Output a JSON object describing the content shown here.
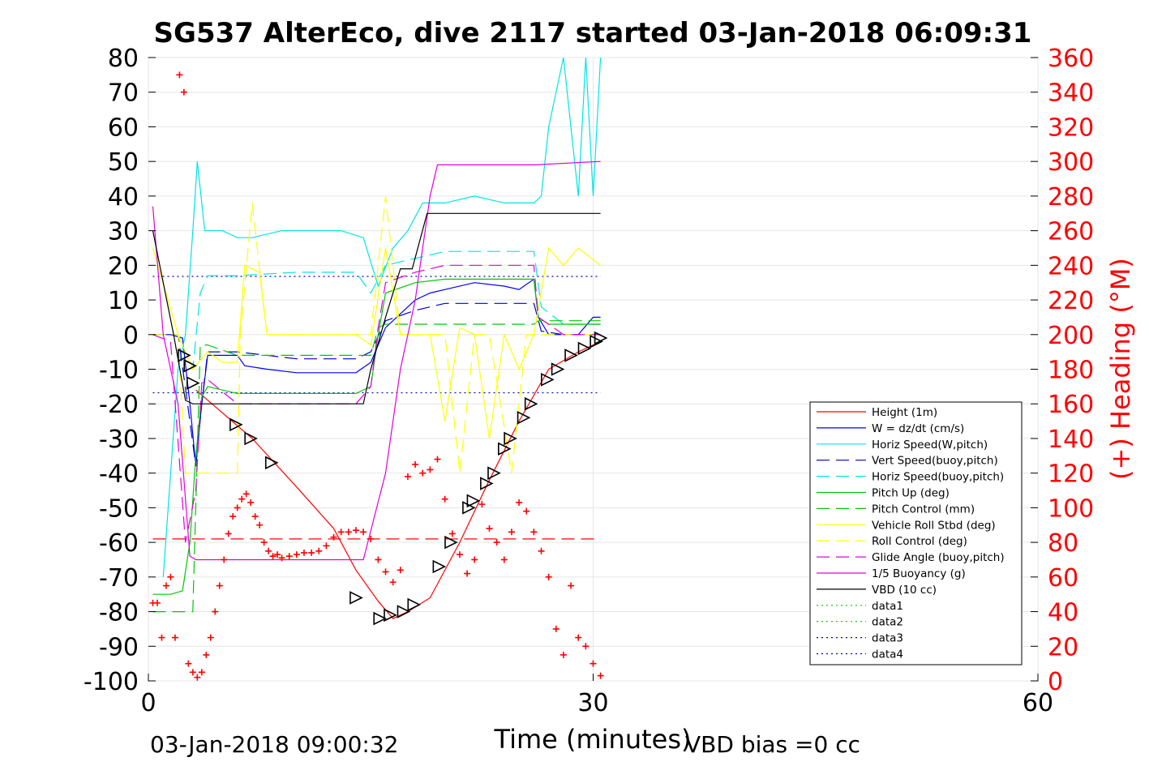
{
  "chart_data": {
    "type": "line",
    "title": "SG537 AlterEco, dive 2117 started 03-Jan-2018 06:09:31",
    "xlabel": "Time (minutes)",
    "ylabel_right": "(+) Heading (°M)",
    "footer_left": "03-Jan-2018 09:00:32",
    "footer_right": "VBD bias =0 cc",
    "xlim": [
      0,
      60
    ],
    "ylim": [
      -100,
      80
    ],
    "ylim_right": [
      0,
      360
    ],
    "x_ticks": [
      "0",
      "30",
      "60"
    ],
    "y_ticks": [
      "80",
      "70",
      "60",
      "50",
      "40",
      "30",
      "20",
      "10",
      "0",
      "-10",
      "-20",
      "-30",
      "-40",
      "-50",
      "-60",
      "-70",
      "-80",
      "-90",
      "-100"
    ],
    "y_ticks_right": [
      "360",
      "340",
      "320",
      "300",
      "280",
      "260",
      "240",
      "220",
      "200",
      "180",
      "160",
      "140",
      "120",
      "100",
      "80",
      "60",
      "40",
      "20",
      "0"
    ],
    "grid": true,
    "legend_position": "bottom-right",
    "colors": {
      "heading_axis": "#ff0000"
    },
    "series": [
      {
        "name": "Height (1m)",
        "color": "#ff0000",
        "style": "solid",
        "x": [
          3.2,
          7,
          10,
          12.5,
          14,
          15.5,
          16.5,
          17.5,
          19,
          21,
          23,
          25,
          27,
          29,
          30.5
        ],
        "y": [
          -16,
          -30,
          -44,
          -56,
          -68,
          -77,
          -82,
          -80,
          -76,
          -60,
          -42,
          -25,
          -10,
          -5,
          -2
        ]
      },
      {
        "name": "W = dz/dt (cm/s)",
        "color": "#0000ff",
        "style": "solid",
        "x": [
          0.3,
          1.5,
          2.3,
          2.8,
          3.2,
          3.6,
          4,
          5,
          6,
          6.5,
          8,
          10,
          12,
          14,
          15,
          16,
          17,
          18,
          19,
          20,
          22,
          24,
          25,
          26,
          26.3,
          27,
          28,
          29,
          30,
          30.5
        ],
        "y": [
          0,
          0,
          -1,
          -20,
          -38,
          -20,
          -6,
          -6,
          -6,
          -9,
          -10,
          -11,
          -11,
          -11,
          -8,
          2,
          6,
          10,
          12,
          13,
          15,
          14,
          13,
          16,
          5,
          0,
          0,
          0,
          5,
          5
        ]
      },
      {
        "name": "Horiz Speed(W,pitch)",
        "color": "#00e5e5",
        "style": "solid",
        "x": [
          1,
          2,
          2.5,
          3,
          3.3,
          3.8,
          4.2,
          5,
          6,
          7,
          9,
          11,
          13,
          14.5,
          15.5,
          16.5,
          17.5,
          18.5,
          20,
          22,
          24,
          26,
          26.5,
          27,
          28,
          29,
          29.5,
          30,
          30.5
        ],
        "y": [
          -70,
          -10,
          0,
          30,
          50,
          30,
          30,
          30,
          28,
          28,
          30,
          30,
          30,
          28,
          14,
          25,
          30,
          38,
          38,
          40,
          38,
          38,
          40,
          60,
          80,
          40,
          80,
          40,
          80
        ]
      },
      {
        "name": "Vert Speed(buoy,pitch)",
        "color": "#0000c8",
        "style": "dashed",
        "x": [
          0.3,
          2,
          2.8,
          3.2,
          3.6,
          4,
          6,
          10,
          14,
          15,
          16,
          18,
          20,
          22,
          24,
          26,
          26.5,
          28,
          30.5
        ],
        "y": [
          0,
          0,
          -25,
          -38,
          -20,
          -5,
          -5,
          -7,
          -7,
          -5,
          4,
          7,
          9,
          9,
          9,
          9,
          1,
          0,
          0
        ]
      },
      {
        "name": "Horiz Speed(buoy,pitch)",
        "color": "#00e5e5",
        "style": "dashed",
        "x": [
          0.3,
          2,
          3,
          3.5,
          4,
          6,
          10,
          14,
          15,
          16,
          18,
          20,
          26,
          26.5,
          28,
          30.5
        ],
        "y": [
          0,
          0,
          -10,
          12,
          17,
          17,
          18,
          18,
          12,
          20,
          22,
          24,
          24,
          8,
          3,
          3
        ]
      },
      {
        "name": "Pitch Up (deg)",
        "color": "#00c800",
        "style": "solid",
        "x": [
          0.3,
          1.5,
          2.3,
          2.8,
          3.2,
          3.6,
          4,
          6,
          10,
          14,
          15,
          15.5,
          16,
          18,
          20,
          22,
          24,
          26,
          26.3,
          27,
          28,
          30.5
        ],
        "y": [
          -75,
          -75,
          -74,
          -60,
          -35,
          -18,
          -15,
          -17,
          -17,
          -17,
          -15,
          0,
          12,
          15,
          16,
          16,
          16,
          16,
          5,
          3,
          3,
          3
        ]
      },
      {
        "name": "Pitch Control (mm)",
        "color": "#00c800",
        "style": "dashed",
        "x": [
          0.3,
          2,
          3,
          3.5,
          4,
          6,
          15,
          15.5,
          16,
          26,
          26.3,
          30.5
        ],
        "y": [
          -80,
          -80,
          -80,
          -3,
          -3,
          -6,
          -6,
          2,
          3,
          3,
          4,
          4
        ]
      },
      {
        "name": "Vehicle Roll Stbd (deg)",
        "color": "#ffff00",
        "style": "solid",
        "x": [
          0.3,
          2,
          3,
          4,
          5,
          6,
          6.5,
          7.5,
          8,
          10,
          12,
          14,
          15,
          16,
          17,
          18,
          19,
          20,
          21,
          22,
          23,
          24,
          25,
          26,
          27,
          28,
          29,
          30.5
        ],
        "y": [
          25,
          0,
          -10,
          -5,
          -8,
          -8,
          20,
          18,
          0,
          0,
          0,
          0,
          -3,
          25,
          0,
          0,
          0,
          -25,
          2,
          0,
          -30,
          0,
          -10,
          0,
          25,
          20,
          25,
          20
        ]
      },
      {
        "name": "Roll Control (deg)",
        "color": "#ffff00",
        "style": "dashed",
        "x": [
          0.3,
          2,
          2.5,
          3.2,
          4,
          6,
          6.2,
          7,
          8,
          12,
          15,
          16,
          17,
          18.5,
          20,
          21,
          22,
          23,
          24.5,
          25.5,
          26,
          27,
          30.5
        ],
        "y": [
          0,
          0,
          -40,
          -40,
          -40,
          -40,
          0,
          38,
          0,
          0,
          0,
          40,
          0,
          0,
          0,
          -40,
          0,
          0,
          -40,
          0,
          0,
          0,
          0
        ]
      },
      {
        "name": "Glide Angle (buoy,pitch)",
        "color": "#e100e1",
        "style": "dashed",
        "x": [
          0.3,
          1.5,
          2.5,
          3.2,
          3.6,
          4,
          6,
          10,
          14,
          15,
          15.5,
          16,
          18,
          20,
          26,
          26.3,
          28,
          30.5
        ],
        "y": [
          0,
          -2,
          -60,
          -45,
          -14,
          -13,
          -20,
          -20,
          -20,
          -15,
          2,
          15,
          18,
          20,
          20,
          5,
          0,
          0
        ]
      },
      {
        "name": "1/5 Buoyancy (g)",
        "color": "#e100e1",
        "style": "solid",
        "x": [
          0.3,
          1,
          2,
          2.8,
          3.2,
          5,
          10,
          14.5,
          16,
          17,
          18,
          19,
          19.5,
          22,
          26,
          30.5
        ],
        "y": [
          37,
          0,
          -20,
          -64,
          -65,
          -65,
          -65,
          -65,
          -40,
          -10,
          10,
          40,
          49,
          49,
          49,
          50
        ]
      },
      {
        "name": "VBD (10 cc)",
        "color": "#000000",
        "style": "solid",
        "x": [
          0.3,
          1,
          1.7,
          2.5,
          3,
          5,
          10,
          14.5,
          15,
          16,
          17,
          17.8,
          18.8,
          22,
          26,
          30.5
        ],
        "y": [
          30,
          15,
          0,
          -19,
          -20,
          -20,
          -20,
          -20,
          -10,
          5,
          19,
          19,
          35,
          35,
          35,
          35
        ]
      },
      {
        "name": "data1",
        "color": "#00c800",
        "style": "dotted",
        "x": [],
        "y": []
      },
      {
        "name": "data2",
        "color": "#00c800",
        "style": "dotted",
        "x": [],
        "y": []
      },
      {
        "name": "data3",
        "color": "#0000c8",
        "style": "dotted",
        "x": [],
        "y": []
      },
      {
        "name": "data4",
        "color": "#0000c8",
        "style": "dotted",
        "x": [],
        "y": []
      }
    ],
    "reference_lines": [
      {
        "y": 16.8,
        "color": "#0000c8",
        "style": "dotted",
        "x_range": [
          0.3,
          30.5
        ]
      },
      {
        "y": -16.8,
        "color": "#0000c8",
        "style": "dotted",
        "x_range": [
          0.3,
          30.5
        ]
      },
      {
        "y": -59,
        "color": "#ff0000",
        "style": "dashed",
        "x_range": [
          0.3,
          30.5
        ]
      }
    ],
    "heading": {
      "color": "#ff0000",
      "marker": "+",
      "x": [
        0.3,
        0.6,
        0.9,
        1.2,
        1.5,
        1.8,
        2.1,
        2.4,
        2.7,
        3.0,
        3.3,
        3.6,
        3.9,
        4.2,
        4.5,
        4.8,
        5.1,
        5.4,
        5.7,
        6.0,
        6.3,
        6.6,
        6.9,
        7.2,
        7.5,
        7.8,
        8.1,
        8.4,
        8.7,
        9.0,
        9.5,
        10,
        10.5,
        11,
        11.5,
        12,
        12.5,
        13,
        13.5,
        14,
        14.5,
        15,
        15.5,
        16,
        16.5,
        17,
        17.5,
        18,
        18.5,
        19,
        19.5,
        20,
        20.5,
        21,
        21.5,
        22,
        22.5,
        23,
        23.5,
        24,
        24.5,
        25,
        25.5,
        26,
        26.5,
        27,
        27.5,
        28,
        28.5,
        29,
        29.5,
        30,
        30.5
      ],
      "y": [
        45,
        45,
        25,
        55,
        60,
        25,
        350,
        340,
        10,
        5,
        2,
        5,
        15,
        25,
        40,
        55,
        70,
        85,
        95,
        100,
        105,
        108,
        103,
        95,
        90,
        80,
        75,
        72,
        73,
        71,
        72,
        73,
        74,
        74,
        75,
        78,
        83,
        86,
        86,
        87,
        86,
        82,
        70,
        63,
        57,
        64,
        118,
        125,
        120,
        122,
        128,
        105,
        85,
        73,
        62,
        70,
        102,
        88,
        80,
        70,
        86,
        103,
        98,
        86,
        75,
        60,
        30,
        15,
        55,
        25,
        20,
        10,
        3
      ]
    },
    "triangles": {
      "color": "#000000",
      "x": [
        2.4,
        2.8,
        3.0,
        5.9,
        6.9,
        8.3,
        14,
        15.6,
        16.3,
        17.2,
        17.9,
        19.6,
        20.4,
        21.6,
        21.9,
        22.8,
        23.3,
        24.0,
        24.4,
        25.3,
        25.8,
        26.9,
        27.6,
        28.5,
        29.4,
        30.2,
        30.5
      ],
      "y": [
        -6,
        -9,
        -14,
        -26,
        -30,
        -37,
        -76,
        -82,
        -81,
        -80,
        -78,
        -67,
        -60,
        -50,
        -48,
        -43,
        -40,
        -33,
        -30,
        -24,
        -20,
        -13,
        -10,
        -6,
        -4,
        -2,
        -1
      ]
    }
  }
}
